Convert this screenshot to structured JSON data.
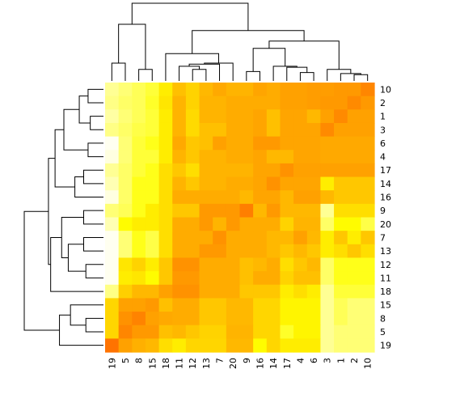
{
  "chart_data": {
    "type": "heatmap",
    "title": "",
    "xlabel": "",
    "ylabel": "",
    "x_labels": [
      "19",
      "5",
      "8",
      "15",
      "18",
      "11",
      "12",
      "13",
      "7",
      "20",
      "9",
      "16",
      "14",
      "17",
      "4",
      "6",
      "3",
      "1",
      "2",
      "10"
    ],
    "y_labels": [
      "10",
      "2",
      "1",
      "3",
      "6",
      "4",
      "17",
      "14",
      "16",
      "9",
      "20",
      "7",
      "13",
      "12",
      "11",
      "18",
      "15",
      "8",
      "5",
      "19"
    ],
    "color_scale": [
      "#ff0000",
      "#ff8000",
      "#ffff00",
      "#ffffff"
    ],
    "value_range": [
      0,
      1
    ],
    "values": [
      [
        0.86,
        0.82,
        0.78,
        0.74,
        0.62,
        0.5,
        0.55,
        0.48,
        0.44,
        0.47,
        0.47,
        0.43,
        0.45,
        0.42,
        0.42,
        0.41,
        0.41,
        0.4,
        0.4,
        0.35
      ],
      [
        0.84,
        0.8,
        0.78,
        0.72,
        0.6,
        0.47,
        0.55,
        0.47,
        0.47,
        0.45,
        0.45,
        0.45,
        0.45,
        0.42,
        0.42,
        0.41,
        0.4,
        0.4,
        0.36,
        0.4
      ],
      [
        0.88,
        0.82,
        0.78,
        0.74,
        0.62,
        0.47,
        0.57,
        0.47,
        0.47,
        0.45,
        0.45,
        0.43,
        0.5,
        0.43,
        0.43,
        0.48,
        0.42,
        0.36,
        0.42,
        0.42
      ],
      [
        0.84,
        0.8,
        0.76,
        0.74,
        0.62,
        0.47,
        0.57,
        0.5,
        0.5,
        0.45,
        0.45,
        0.43,
        0.5,
        0.43,
        0.43,
        0.43,
        0.36,
        0.42,
        0.42,
        0.42
      ],
      [
        0.98,
        0.82,
        0.74,
        0.7,
        0.62,
        0.44,
        0.52,
        0.5,
        0.42,
        0.45,
        0.45,
        0.4,
        0.4,
        0.43,
        0.43,
        0.43,
        0.44,
        0.44,
        0.44,
        0.44
      ],
      [
        0.96,
        0.82,
        0.74,
        0.74,
        0.62,
        0.47,
        0.52,
        0.47,
        0.47,
        0.45,
        0.45,
        0.43,
        0.48,
        0.48,
        0.43,
        0.43,
        0.44,
        0.44,
        0.44,
        0.44
      ],
      [
        0.86,
        0.8,
        0.74,
        0.7,
        0.58,
        0.52,
        0.58,
        0.47,
        0.47,
        0.47,
        0.47,
        0.43,
        0.43,
        0.38,
        0.42,
        0.42,
        0.42,
        0.42,
        0.42,
        0.42
      ],
      [
        0.9,
        0.8,
        0.7,
        0.7,
        0.58,
        0.47,
        0.52,
        0.47,
        0.47,
        0.45,
        0.45,
        0.43,
        0.38,
        0.43,
        0.43,
        0.43,
        0.62,
        0.52,
        0.52,
        0.52
      ],
      [
        0.96,
        0.8,
        0.7,
        0.7,
        0.58,
        0.45,
        0.45,
        0.45,
        0.45,
        0.45,
        0.48,
        0.43,
        0.43,
        0.48,
        0.42,
        0.42,
        0.48,
        0.52,
        0.52,
        0.52
      ],
      [
        0.82,
        0.78,
        0.7,
        0.62,
        0.58,
        0.52,
        0.52,
        0.4,
        0.4,
        0.4,
        0.33,
        0.48,
        0.4,
        0.48,
        0.48,
        0.48,
        0.86,
        0.58,
        0.58,
        0.58
      ],
      [
        0.9,
        0.66,
        0.62,
        0.62,
        0.58,
        0.45,
        0.45,
        0.4,
        0.47,
        0.4,
        0.45,
        0.45,
        0.45,
        0.55,
        0.47,
        0.47,
        0.8,
        0.66,
        0.66,
        0.76
      ],
      [
        0.98,
        0.82,
        0.7,
        0.76,
        0.58,
        0.45,
        0.45,
        0.45,
        0.38,
        0.45,
        0.45,
        0.45,
        0.48,
        0.48,
        0.42,
        0.48,
        0.62,
        0.52,
        0.62,
        0.52
      ],
      [
        0.98,
        0.82,
        0.7,
        0.76,
        0.58,
        0.45,
        0.45,
        0.4,
        0.4,
        0.45,
        0.45,
        0.45,
        0.48,
        0.52,
        0.48,
        0.52,
        0.62,
        0.58,
        0.52,
        0.58
      ],
      [
        0.98,
        0.6,
        0.55,
        0.62,
        0.52,
        0.38,
        0.38,
        0.45,
        0.45,
        0.45,
        0.5,
        0.48,
        0.45,
        0.58,
        0.52,
        0.48,
        0.8,
        0.7,
        0.7,
        0.7
      ],
      [
        0.98,
        0.62,
        0.6,
        0.66,
        0.52,
        0.4,
        0.4,
        0.45,
        0.45,
        0.45,
        0.5,
        0.45,
        0.45,
        0.55,
        0.5,
        0.5,
        0.8,
        0.7,
        0.7,
        0.7
      ],
      [
        0.84,
        0.54,
        0.48,
        0.48,
        0.42,
        0.38,
        0.38,
        0.45,
        0.45,
        0.45,
        0.52,
        0.52,
        0.52,
        0.62,
        0.58,
        0.62,
        0.86,
        0.74,
        0.74,
        0.74
      ],
      [
        0.56,
        0.42,
        0.42,
        0.4,
        0.5,
        0.45,
        0.45,
        0.52,
        0.52,
        0.48,
        0.48,
        0.56,
        0.56,
        0.64,
        0.64,
        0.64,
        0.86,
        0.78,
        0.82,
        0.82
      ],
      [
        0.56,
        0.38,
        0.34,
        0.42,
        0.44,
        0.45,
        0.45,
        0.52,
        0.52,
        0.48,
        0.48,
        0.56,
        0.56,
        0.64,
        0.64,
        0.64,
        0.86,
        0.78,
        0.82,
        0.82
      ],
      [
        0.56,
        0.35,
        0.4,
        0.4,
        0.5,
        0.48,
        0.52,
        0.55,
        0.55,
        0.47,
        0.47,
        0.56,
        0.56,
        0.72,
        0.64,
        0.64,
        0.86,
        0.82,
        0.82,
        0.82
      ],
      [
        0.3,
        0.42,
        0.46,
        0.48,
        0.58,
        0.62,
        0.56,
        0.56,
        0.56,
        0.48,
        0.48,
        0.66,
        0.56,
        0.62,
        0.62,
        0.62,
        0.86,
        0.82,
        0.82,
        0.82
      ]
    ]
  }
}
